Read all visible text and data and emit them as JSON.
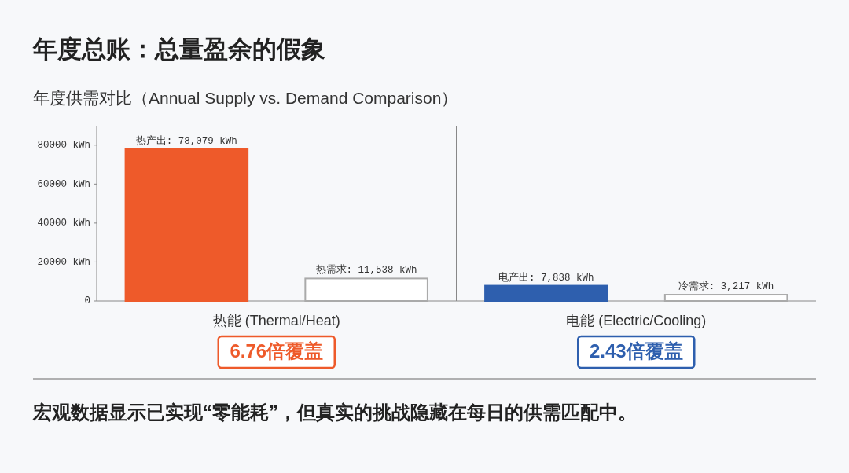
{
  "chart_data": {
    "type": "bar",
    "title": "年度总账：总量盈余的假象",
    "subtitle": "年度供需对比（Annual Supply vs. Demand Comparison）",
    "categories": [
      null,
      null,
      null,
      null
    ],
    "values": [
      78079,
      11538,
      7838,
      3217
    ],
    "colors": [
      "#ee5a2a",
      "#ffffff",
      "#2e5fae",
      "#ffffff"
    ],
    "value_labels": [
      "热产出: 78,079 kWh",
      "热需求: 11,538 kWh",
      "电产出: 7,838 kWh",
      "冷需求: 3,217 kWh"
    ],
    "ylim": [
      0,
      90000
    ],
    "yticks": [
      {
        "value": 0,
        "label": "0"
      },
      {
        "value": 20000,
        "label": "20000 kWh"
      },
      {
        "value": 40000,
        "label": "40000 kWh"
      },
      {
        "value": 60000,
        "label": "60000 kWh"
      },
      {
        "value": 80000,
        "label": "80000 kWh"
      }
    ],
    "tick_labels": "y",
    "annotations": [
      "热能 (Thermal/Heat)",
      "电能 (Electric/Cooling)",
      "6.76倍覆盖",
      "2.43倍覆盖",
      "宏观数据显示已实现“零能耗”，但真实的挑战隐藏在每日的供需匹配中。"
    ]
  }
}
